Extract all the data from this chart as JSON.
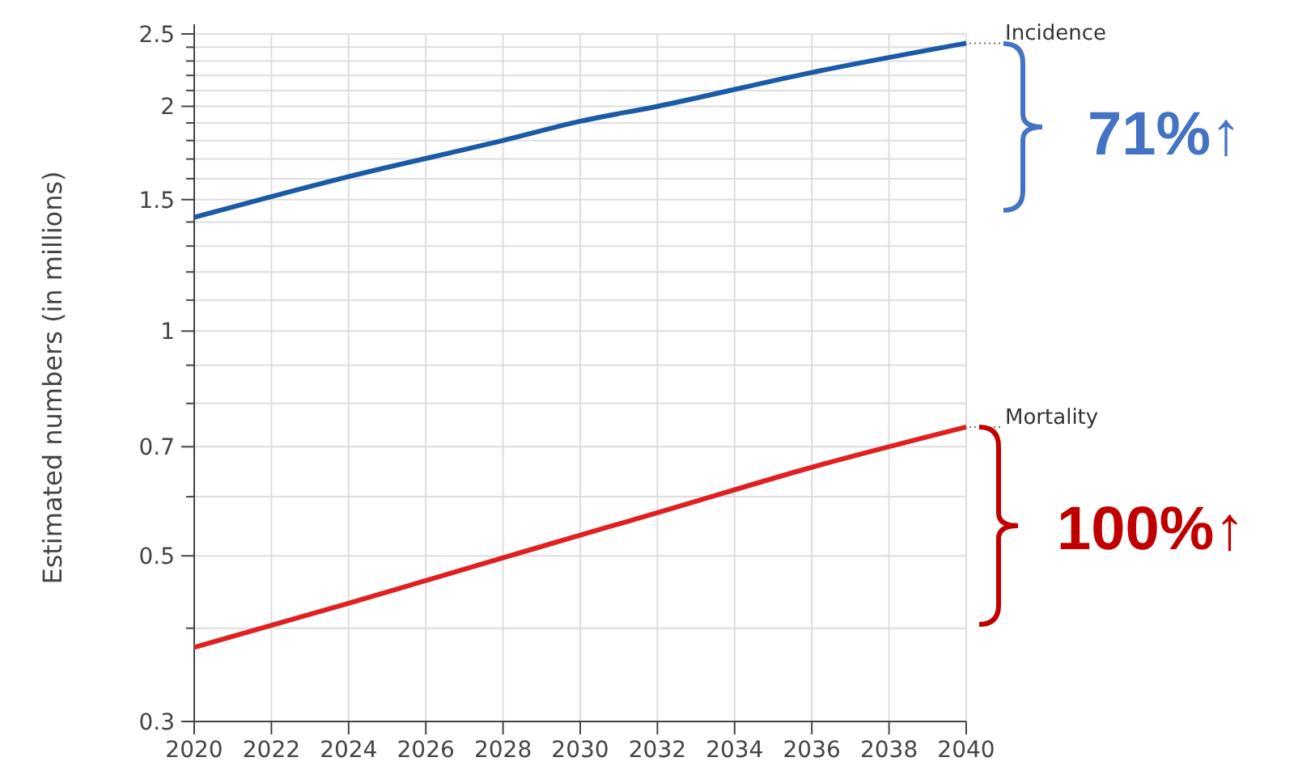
{
  "chart_data": {
    "type": "line",
    "ylabel": "Estimated numbers (in millions)",
    "x": [
      2020,
      2024,
      2028,
      2030,
      2032,
      2036,
      2040
    ],
    "series": [
      {
        "name": "Incidence",
        "color": "#1a5aa6",
        "values": [
          1.42,
          1.61,
          1.8,
          1.91,
          2.0,
          2.22,
          2.43
        ]
      },
      {
        "name": "Mortality",
        "color": "#e02020",
        "values": [
          0.377,
          0.432,
          0.497,
          0.533,
          0.571,
          0.657,
          0.744
        ]
      }
    ],
    "log": true,
    "xlim": [
      2020,
      2040
    ],
    "xticks": [
      2020,
      2022,
      2024,
      2026,
      2028,
      2030,
      2032,
      2034,
      2036,
      2038,
      2040
    ],
    "ylim": [
      0.3,
      2.5
    ],
    "yticks": [
      0.3,
      {
        "value": 0.4,
        "label": null
      },
      0.5,
      {
        "value": 0.6,
        "label": null
      },
      0.7,
      {
        "value": 0.8,
        "label": null
      },
      {
        "value": 0.9,
        "label": null
      },
      1,
      {
        "value": 1.1,
        "label": null
      },
      {
        "value": 1.2,
        "label": null
      },
      {
        "value": 1.3,
        "label": null
      },
      {
        "value": 1.4,
        "label": null
      },
      1.5,
      {
        "value": 1.6,
        "label": null
      },
      {
        "value": 1.7,
        "label": null
      },
      {
        "value": 1.8,
        "label": null
      },
      {
        "value": 1.9,
        "label": null
      },
      2,
      {
        "value": 2.1,
        "label": null
      },
      {
        "value": 2.2,
        "label": null
      },
      {
        "value": 2.3,
        "label": null
      },
      {
        "value": 2.4,
        "label": null
      },
      2.5
    ],
    "grid": true,
    "legend": false,
    "marker": "none",
    "line_style": "solid",
    "annotations": [
      "71%↑",
      "100%↑"
    ]
  }
}
